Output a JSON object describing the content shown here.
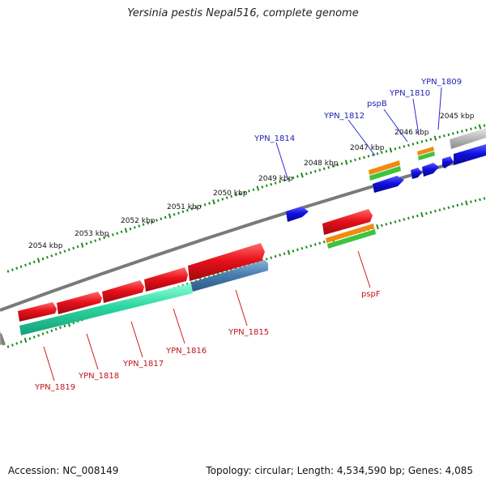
{
  "title": "Yersinia pestis Nepal516, complete genome",
  "accession": "Accession: NC_008149",
  "summary": "Topology: circular; Length: 4,534,590 bp; Genes: 4,085",
  "kbp_ticks": [
    "2045 kbp",
    "2046 kbp",
    "2047 kbp",
    "2048 kbp",
    "2049 kbp",
    "2050 kbp",
    "2051 kbp",
    "2052 kbp",
    "2053 kbp",
    "2054 kbp"
  ],
  "upper_labels": [
    "YPN_1809",
    "YPN_1810",
    "pspB",
    "YPN_1812",
    "YPN_1814"
  ],
  "lower_labels": [
    "pspF",
    "YPN_1815",
    "YPN_1816",
    "YPN_1817",
    "YPN_1818",
    "YPN_1819"
  ],
  "colors": {
    "red": "#e8111b",
    "blue": "#1010e0",
    "green": "#3cc43c",
    "orange": "#f08a10",
    "teal": "#2ad6a0",
    "steel": "#4a7fb0",
    "grey": "#b8b8b8",
    "tick": "#1f8a1f"
  }
}
